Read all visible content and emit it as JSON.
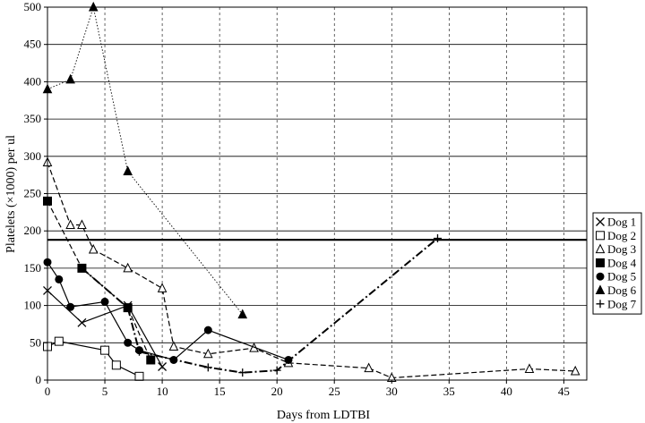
{
  "chart_data": {
    "type": "scatter",
    "xlabel": "Days from LDTBI",
    "ylabel": "Platelets (×1000) per ul",
    "xlim": [
      0,
      47
    ],
    "ylim": [
      0,
      500
    ],
    "x_ticks": [
      0,
      5,
      10,
      15,
      20,
      25,
      30,
      35,
      40,
      45
    ],
    "y_ticks": [
      0,
      50,
      100,
      150,
      200,
      250,
      300,
      350,
      400,
      450,
      500
    ],
    "x_tick_labels": [
      "0",
      "5",
      "10",
      "15",
      "20",
      "25",
      "30",
      "35",
      "40",
      "45"
    ],
    "y_tick_labels": [
      "0",
      "50",
      "100",
      "150",
      "200",
      "250",
      "300",
      "350",
      "400",
      "450",
      "500"
    ],
    "grid": "horizontal solid, vertical dashed",
    "legend_position": "right",
    "reference_line_y": 188,
    "series": [
      {
        "name": "Dog 1",
        "marker": "x",
        "line": "solid",
        "x": [
          0,
          3,
          7,
          10
        ],
        "y": [
          120,
          77,
          100,
          18
        ]
      },
      {
        "name": "Dog 2",
        "marker": "square-open",
        "line": "solid",
        "x": [
          0,
          1,
          5,
          6,
          8
        ],
        "y": [
          45,
          52,
          40,
          20,
          5
        ]
      },
      {
        "name": "Dog 3",
        "marker": "triangle-open",
        "line": "dashed",
        "x": [
          0,
          2,
          3,
          4,
          7,
          10,
          11,
          14,
          18,
          21,
          28,
          30,
          42,
          46
        ],
        "y": [
          292,
          208,
          208,
          175,
          150,
          123,
          45,
          35,
          43,
          23,
          16,
          3,
          15,
          12
        ]
      },
      {
        "name": "Dog 4",
        "marker": "square-filled",
        "line": "dashed",
        "x": [
          0,
          3,
          7,
          9
        ],
        "y": [
          240,
          150,
          97,
          27
        ]
      },
      {
        "name": "Dog 5",
        "marker": "circle-filled",
        "line": "solid",
        "x": [
          0,
          1,
          2,
          5,
          7,
          8,
          11,
          14,
          21
        ],
        "y": [
          158,
          135,
          98,
          105,
          50,
          40,
          27,
          67,
          27
        ]
      },
      {
        "name": "Dog 6",
        "marker": "triangle-filled",
        "line": "dotted",
        "x": [
          0,
          2,
          4,
          7,
          17
        ],
        "y": [
          390,
          403,
          500,
          280,
          88
        ]
      },
      {
        "name": "Dog 7",
        "marker": "plus",
        "line": "dashdot",
        "x": [
          3,
          7,
          8,
          14,
          17,
          20,
          34
        ],
        "y": [
          150,
          97,
          38,
          17,
          10,
          13,
          190
        ]
      }
    ]
  }
}
